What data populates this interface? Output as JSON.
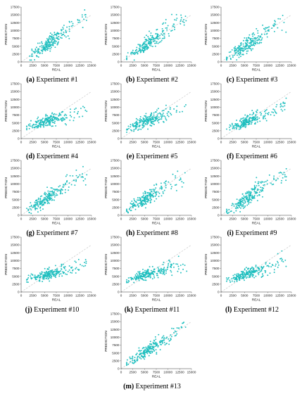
{
  "figure": {
    "panels": [
      {
        "letter": "(a)",
        "label": " Experiment #1",
        "spread": 1.0,
        "shrink": 0.0,
        "seed": 11
      },
      {
        "letter": "(b)",
        "label": " Experiment #2",
        "spread": 1.0,
        "shrink": 0.0,
        "seed": 23
      },
      {
        "letter": "(c)",
        "label": " Experiment #3",
        "spread": 1.05,
        "shrink": 0.0,
        "seed": 37
      },
      {
        "letter": "(d)",
        "label": " Experiment #4",
        "spread": 0.7,
        "shrink": 0.55,
        "seed": 41
      },
      {
        "letter": "(e)",
        "label": " Experiment #5",
        "spread": 0.8,
        "shrink": 0.45,
        "seed": 53
      },
      {
        "letter": "(f)",
        "label": " Experiment #6",
        "spread": 0.8,
        "shrink": 0.4,
        "seed": 67
      },
      {
        "letter": "(g)",
        "label": " Experiment #7",
        "spread": 0.9,
        "shrink": 0.05,
        "seed": 71
      },
      {
        "letter": "(h)",
        "label": " Experiment #8",
        "spread": 0.9,
        "shrink": 0.1,
        "seed": 83
      },
      {
        "letter": "(i)",
        "label": " Experiment #9",
        "spread": 1.0,
        "shrink": 0.05,
        "seed": 97
      },
      {
        "letter": "(j)",
        "label": " Experiment #10",
        "spread": 0.7,
        "shrink": 0.6,
        "seed": 101
      },
      {
        "letter": "(k)",
        "label": " Experiment #11",
        "spread": 0.7,
        "shrink": 0.55,
        "seed": 113
      },
      {
        "letter": "(l)",
        "label": " Experiment #12",
        "spread": 0.75,
        "shrink": 0.5,
        "seed": 127
      },
      {
        "letter": "(m)",
        "label": " Experiment #13",
        "spread": 0.9,
        "shrink": 0.1,
        "seed": 131
      }
    ]
  },
  "chart_data": {
    "type": "scatter",
    "xlabel": "REAL",
    "ylabel": "PREDICTION",
    "xlim": [
      0,
      15000
    ],
    "ylim": [
      0,
      17500
    ],
    "xticks": [
      "0",
      "2500",
      "5000",
      "7500",
      "10000",
      "12500",
      "15000"
    ],
    "yticks": [
      "0",
      "2500",
      "5000",
      "7500",
      "10000",
      "12500",
      "15000",
      "17500"
    ],
    "reference_line": "y = x (dashed)",
    "grid": false,
    "point_count_per_panel": 220,
    "colors": {
      "points": "#1fbfbf",
      "reference": "#c8c8c8",
      "axis": "#333333"
    }
  }
}
